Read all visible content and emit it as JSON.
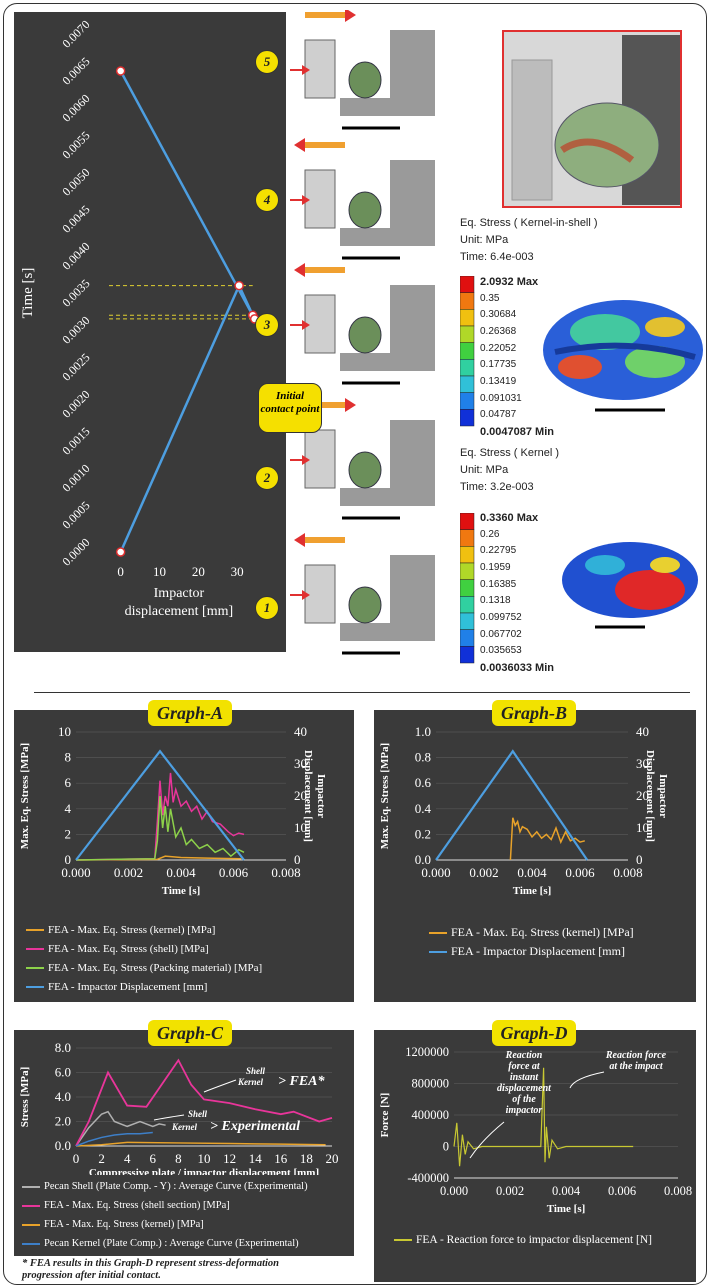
{
  "top_chart": {
    "ylabel": "Time [s]",
    "xlabel_line1": "Impactor",
    "xlabel_line2": "displacement [mm]",
    "yticks": [
      "0.0000",
      "0.0005",
      "0.0010",
      "0.0015",
      "0.0020",
      "0.0025",
      "0.0030",
      "0.0035",
      "0.0040",
      "0.0045",
      "0.0050",
      "0.0055",
      "0.0060",
      "0.0065",
      "0.0070"
    ],
    "xticks": [
      "0",
      "10",
      "20",
      "30"
    ]
  },
  "steps": [
    "1",
    "2",
    "3",
    "4",
    "5"
  ],
  "initial_contact": "Initial contact point",
  "kernel_in_shell": {
    "title": "Eq. Stress ( Kernel-in-shell )",
    "unit": "Unit: MPa",
    "time": "Time: 6.4e-003",
    "levels": [
      "2.0932 Max",
      "0.35",
      "0.30684",
      "0.26368",
      "0.22052",
      "0.17735",
      "0.13419",
      "0.091031",
      "0.04787",
      "0.0047087 Min"
    ]
  },
  "kernel": {
    "title": "Eq. Stress ( Kernel )",
    "unit": "Unit: MPa",
    "time": "Time: 3.2e-003",
    "levels": [
      "0.3360   Max",
      "0.26",
      "0.22795",
      "0.1959",
      "0.16385",
      "0.1318",
      "0.099752",
      "0.067702",
      "0.035653",
      "0.0036033 Min"
    ]
  },
  "colors": {
    "kernel": "#e8a22a",
    "shell": "#e8359a",
    "packing": "#8dd24a",
    "impactor": "#4d9ee0",
    "reaction": "#c8c832",
    "grey": "#b0b0b0",
    "blue_exp": "#3d7fc8"
  },
  "graphA": {
    "title": "Graph-A",
    "legend": [
      "FEA - Max. Eq. Stress  (kernel) [MPa]",
      "FEA - Max. Eq. Stress  (shell)  [MPa]",
      "FEA - Max. Eq. Stress  (Packing material) [MPa]",
      "FEA - Impactor Displacement  [mm]"
    ]
  },
  "graphB": {
    "title": "Graph-B",
    "legend": [
      "FEA - Max. Eq. Stress  (kernel) [MPa]",
      "FEA - Impactor Displacement  [mm]"
    ]
  },
  "graphC": {
    "title": "Graph-C",
    "legend": [
      "Pecan Shell (Plate Comp. - Y) : Average Curve (Experimental)",
      "FEA - Max. Eq. Stress  (shell section)  [MPa]",
      "FEA - Max. Eq. Stress  (kernel) [MPa]",
      "Pecan Kernel (Plate Comp.) : Average Curve (Experimental)"
    ],
    "ann_shell1": "Shell",
    "ann_kernel1": "Kernel",
    "ann_fea": "> FEA*",
    "ann_shell2": "Shell",
    "ann_kernel2": "Kernel",
    "ann_exp": "> Experimental"
  },
  "graphD": {
    "title": "Graph-D",
    "legend": [
      "FEA - Reaction force to impactor displacement  [N]"
    ],
    "ann1": [
      "Reaction",
      "force at",
      "instant",
      "displacement",
      "of the",
      "impactor"
    ],
    "ann2": [
      "Reaction force",
      "at the impact"
    ]
  },
  "footnote": [
    "* FEA results in this Graph-D represent stress-deformation",
    "progression after initial contact."
  ],
  "chart_data": [
    {
      "type": "line",
      "title": "",
      "xlabel": "Impactor displacement [mm]",
      "ylabel": "Time [s]",
      "xlim": [
        -3,
        40
      ],
      "ylim": [
        0,
        0.007
      ],
      "series": [
        {
          "x": [
            0,
            30.5,
            34,
            34.5,
            0
          ],
          "y": [
            0.0,
            0.0036,
            0.0032,
            0.00315,
            0.0065
          ]
        }
      ]
    },
    {
      "type": "line",
      "title": "Graph-A",
      "xlabel": "Time [s]",
      "ylabel": "Max. Eq. Stress [MPa]",
      "y2label": "Impactor Displacement [mm]",
      "xlim": [
        0,
        0.008
      ],
      "ylim": [
        0,
        10
      ],
      "y2lim": [
        0,
        40
      ],
      "xticks": [
        "0.000",
        "0.002",
        "0.004",
        "0.006",
        "0.008"
      ],
      "yticks": [
        "0",
        "2",
        "4",
        "6",
        "8",
        "10"
      ],
      "y2ticks": [
        "0",
        "10",
        "20",
        "30",
        "40"
      ],
      "series": [
        {
          "name": "FEA - Max. Eq. Stress  (kernel) [MPa]",
          "axis": "y",
          "x": [
            0,
            0.0031,
            0.0034,
            0.004,
            0.005,
            0.0063
          ],
          "y": [
            0,
            0.05,
            0.3,
            0.2,
            0.15,
            0.1
          ]
        },
        {
          "name": "FEA - Max. Eq. Stress  (shell)  [MPa]",
          "axis": "y",
          "x": [
            0,
            0.003,
            0.0031,
            0.0032,
            0.0033,
            0.0034,
            0.0035,
            0.0036,
            0.0037,
            0.0038,
            0.004,
            0.0042,
            0.0044,
            0.0046,
            0.0048,
            0.005,
            0.0052,
            0.0055,
            0.0058,
            0.006,
            0.0062,
            0.0064
          ],
          "y": [
            0,
            0.1,
            3,
            6.2,
            3.5,
            5,
            4.2,
            6.8,
            4.5,
            5.5,
            4.2,
            4.6,
            3.8,
            4.2,
            3.2,
            3.8,
            3,
            2.8,
            2.2,
            1.9,
            2.1,
            2.0
          ]
        },
        {
          "name": "FEA - Max. Eq. Stress  (Packing material) [MPa]",
          "axis": "y",
          "x": [
            0,
            0.003,
            0.0031,
            0.0032,
            0.0033,
            0.0034,
            0.0035,
            0.0036,
            0.0038,
            0.004,
            0.0042,
            0.0044,
            0.0047,
            0.005,
            0.0053,
            0.0056,
            0.0059,
            0.0062,
            0.0064
          ],
          "y": [
            0,
            0.1,
            1.5,
            5.0,
            2.5,
            4.2,
            2.2,
            4.0,
            1.8,
            2.5,
            1.2,
            1.6,
            0.9,
            1.2,
            0.6,
            0.9,
            0.3,
            0.8,
            0.6
          ]
        },
        {
          "name": "FEA - Impactor Displacement  [mm]",
          "axis": "y2",
          "x": [
            0,
            0.0032,
            0.0064
          ],
          "y": [
            0,
            34,
            0
          ]
        }
      ]
    },
    {
      "type": "line",
      "title": "Graph-B",
      "xlabel": "Time [s]",
      "ylabel": "Max. Eq. Stress [MPa]",
      "y2label": "Impactor Displacement [mm]",
      "xlim": [
        0,
        0.008
      ],
      "ylim": [
        0,
        1.0
      ],
      "y2lim": [
        0,
        40
      ],
      "xticks": [
        "0.000",
        "0.002",
        "0.004",
        "0.006",
        "0.008"
      ],
      "yticks": [
        "0.0",
        "0.2",
        "0.4",
        "0.6",
        "0.8",
        "1.0"
      ],
      "y2ticks": [
        "0",
        "10",
        "20",
        "30",
        "40"
      ],
      "series": [
        {
          "name": "FEA - Max. Eq. Stress  (kernel) [MPa]",
          "axis": "y",
          "x": [
            0.0031,
            0.0032,
            0.0033,
            0.0034,
            0.0035,
            0.0036,
            0.0038,
            0.004,
            0.0042,
            0.0044,
            0.0046,
            0.0048,
            0.005,
            0.0052,
            0.0054,
            0.0056,
            0.0058,
            0.006,
            0.0062
          ],
          "y": [
            0,
            0.33,
            0.27,
            0.3,
            0.22,
            0.26,
            0.24,
            0.18,
            0.22,
            0.17,
            0.2,
            0.16,
            0.25,
            0.14,
            0.22,
            0.15,
            0.17,
            0.14,
            0.15
          ]
        },
        {
          "name": "FEA - Impactor Displacement  [mm]",
          "axis": "y2",
          "x": [
            0,
            0.0032,
            0.0063
          ],
          "y": [
            0,
            34,
            0
          ]
        }
      ]
    },
    {
      "type": "line",
      "title": "Graph-C",
      "xlabel": "Compressive plate / impactor displacement [mm]",
      "ylabel": "Stress [MPa]",
      "xlim": [
        0,
        20
      ],
      "ylim": [
        0,
        8.0
      ],
      "xticks": [
        "0",
        "2",
        "4",
        "6",
        "8",
        "10",
        "12",
        "14",
        "16",
        "18",
        "20"
      ],
      "yticks": [
        "0.0",
        "2.0",
        "4.0",
        "6.0",
        "8.0"
      ],
      "series": [
        {
          "name": "Pecan Shell (Plate Comp. - Y) : Average Curve (Experimental)",
          "x": [
            0,
            1,
            2,
            2.5,
            3,
            4,
            5,
            6,
            6.5,
            7
          ],
          "y": [
            0,
            1.5,
            2.6,
            2.8,
            2.0,
            1.6,
            2.0,
            1.6,
            1.8,
            1.7
          ]
        },
        {
          "name": "FEA - Max. Eq. Stress  (shell section)  [MPa]",
          "x": [
            0,
            1,
            2.5,
            4,
            5.5,
            8,
            9,
            10,
            12,
            14,
            16,
            17,
            19,
            20
          ],
          "y": [
            0,
            2.0,
            6.0,
            3.3,
            3.2,
            7.0,
            5.0,
            3.8,
            3.5,
            3.0,
            2.6,
            2.8,
            2.0,
            2.3
          ]
        },
        {
          "name": "FEA - Max. Eq. Stress  (kernel) [MPa]",
          "x": [
            0,
            2,
            4,
            8,
            12,
            16,
            19.5
          ],
          "y": [
            0,
            0.1,
            0.3,
            0.25,
            0.2,
            0.15,
            0.1
          ]
        },
        {
          "name": "Pecan Kernel (Plate Comp.) : Average Curve (Experimental)",
          "x": [
            0,
            1,
            2,
            3,
            4,
            5,
            6
          ],
          "y": [
            0,
            0.4,
            0.7,
            0.9,
            1.0,
            1.0,
            1.1
          ]
        }
      ]
    },
    {
      "type": "line",
      "title": "Graph-D",
      "xlabel": "Time [s]",
      "ylabel": "Force [N]",
      "xlim": [
        0,
        0.008
      ],
      "ylim": [
        -400000,
        1200000
      ],
      "xticks": [
        "0.000",
        "0.002",
        "0.004",
        "0.006",
        "0.008"
      ],
      "yticks": [
        "-400000",
        "0",
        "400000",
        "800000",
        "1200000"
      ],
      "series": [
        {
          "name": "FEA - Reaction force to impactor displacement  [N]",
          "x": [
            0,
            0.0001,
            0.0002,
            0.0003,
            0.0004,
            0.0005,
            0.0007,
            0.001,
            0.0031,
            0.0032,
            0.00325,
            0.0033,
            0.0034,
            0.0035,
            0.0037,
            0.004,
            0.0064
          ],
          "y": [
            0,
            300000,
            -250000,
            150000,
            -100000,
            60000,
            -30000,
            0,
            0,
            1000000,
            -200000,
            250000,
            -150000,
            80000,
            -30000,
            0,
            0
          ]
        }
      ]
    }
  ]
}
